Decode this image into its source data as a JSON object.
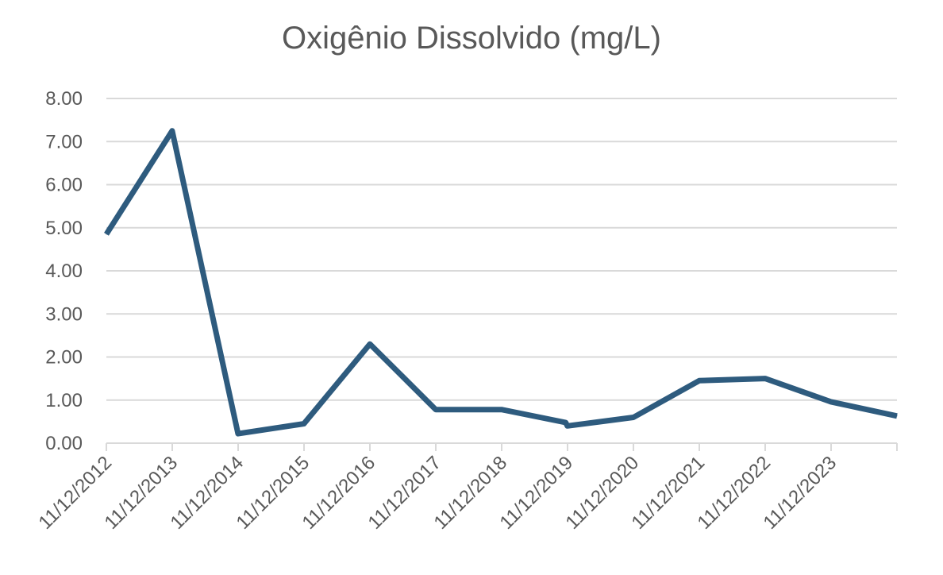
{
  "chart_data": {
    "type": "line",
    "title": "Oxigênio Dissolvido (mg/L)",
    "xlabel": "",
    "ylabel": "",
    "ylim": [
      0,
      8
    ],
    "y_ticks": [
      "0.00",
      "1.00",
      "2.00",
      "3.00",
      "4.00",
      "5.00",
      "6.00",
      "7.00",
      "8.00"
    ],
    "x_tick_labels": [
      "11/12/2012",
      "11/12/2013",
      "11/12/2014",
      "11/12/2015",
      "11/12/2016",
      "11/12/2017",
      "11/12/2018",
      "11/12/2019",
      "11/12/2020",
      "11/12/2021",
      "11/12/2022",
      "11/12/2023"
    ],
    "grid": true,
    "legend": "none",
    "series": [
      {
        "color": "#2e5b7e",
        "points": [
          {
            "x": "2012-12-11",
            "y": 4.85
          },
          {
            "x": "2013-12-11",
            "y": 7.25
          },
          {
            "x": "2014-12-11",
            "y": 0.22
          },
          {
            "x": "2015-12-11",
            "y": 0.45
          },
          {
            "x": "2016-12-11",
            "y": 2.3
          },
          {
            "x": "2017-12-11",
            "y": 0.78
          },
          {
            "x": "2018-12-11",
            "y": 0.78
          },
          {
            "x": "2019-12-01",
            "y": 0.48
          },
          {
            "x": "2019-12-11",
            "y": 0.4
          },
          {
            "x": "2020-12-11",
            "y": 0.6
          },
          {
            "x": "2021-12-11",
            "y": 1.45
          },
          {
            "x": "2022-12-11",
            "y": 1.5
          },
          {
            "x": "2023-12-11",
            "y": 0.96
          },
          {
            "x": "2024-12-11",
            "y": 0.63
          }
        ]
      }
    ]
  }
}
